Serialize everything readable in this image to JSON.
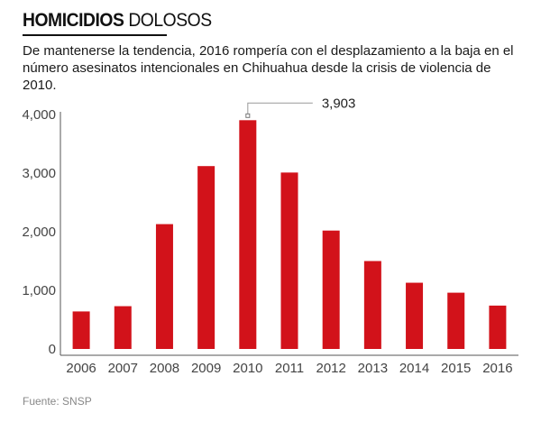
{
  "header": {
    "title_bold": "HOMICIDIOS",
    "title_light": "DOLOSOS",
    "subtitle": "De mantenerse la tendencia, 2016 rompería con el desplazamiento a la baja en el número asesinatos intencionales en Chihuahua desde la crisis de violencia de 2010."
  },
  "footer": {
    "source": "Fuente: SNSP"
  },
  "colors": {
    "bar": "#d2121a",
    "axis": "#555555",
    "tick_text": "#444444",
    "callout": "#999999"
  },
  "chart_data": {
    "type": "bar",
    "categories": [
      "2006",
      "2007",
      "2008",
      "2009",
      "2010",
      "2011",
      "2012",
      "2013",
      "2014",
      "2015",
      "2016"
    ],
    "values": [
      640,
      730,
      2130,
      3120,
      3903,
      3010,
      2020,
      1500,
      1130,
      960,
      740
    ],
    "ylim": [
      0,
      4000
    ],
    "yticks": [
      0,
      1000,
      2000,
      3000,
      4000
    ],
    "ytick_labels": [
      "0",
      "1,000",
      "2,000",
      "3,000",
      "4,000"
    ],
    "grid": false,
    "legend": "none",
    "annotation": {
      "category": "2010",
      "text": "3,903"
    }
  }
}
